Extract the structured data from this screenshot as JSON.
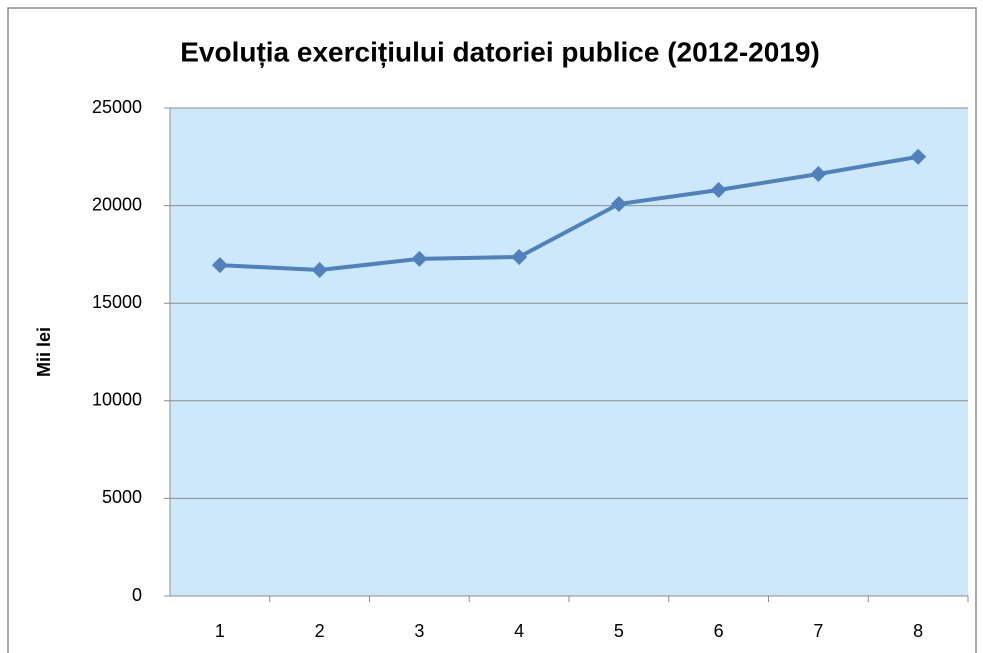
{
  "chart_data": {
    "type": "line",
    "title": "Evoluția exercițiului datoriei publice (2012-2019)",
    "y_label": "Mii lei",
    "categories": [
      "1",
      "2",
      "3",
      "4",
      "5",
      "6",
      "7",
      "8"
    ],
    "series": [
      {
        "color": "#4f81bd",
        "values": [
          16950,
          16700,
          17270,
          17370,
          20080,
          20800,
          21620,
          22500
        ]
      }
    ],
    "ylim": [
      0,
      25000
    ],
    "yticks": [
      0,
      5000,
      10000,
      15000,
      20000,
      25000
    ],
    "grid": true,
    "plot_background": "#cce8fa"
  }
}
